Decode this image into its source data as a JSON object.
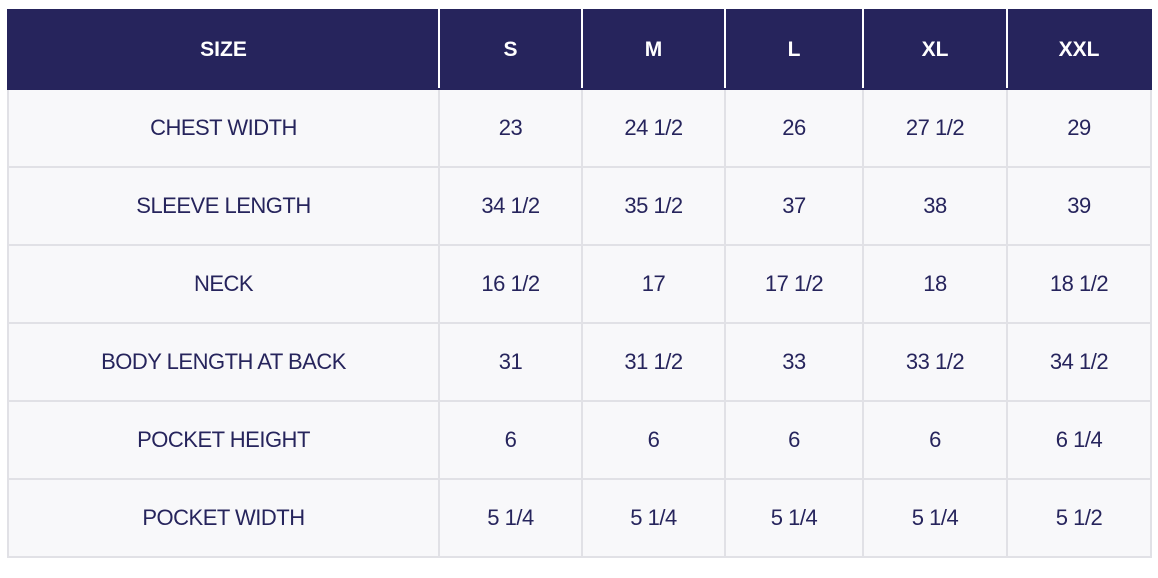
{
  "table": {
    "headers": [
      "SIZE",
      "S",
      "M",
      "L",
      "XL",
      "XXL"
    ],
    "rows": [
      [
        "CHEST WIDTH",
        "23",
        "24 1/2",
        "26",
        "27 1/2",
        "29"
      ],
      [
        "SLEEVE LENGTH",
        "34 1/2",
        "35 1/2",
        "37",
        "38",
        "39"
      ],
      [
        "NECK",
        "16 1/2",
        "17",
        "17 1/2",
        "18",
        "18 1/2"
      ],
      [
        "BODY LENGTH AT BACK",
        "31",
        "31 1/2",
        "33",
        "33 1/2",
        "34 1/2"
      ],
      [
        "POCKET HEIGHT",
        "6",
        "6",
        "6",
        "6",
        "6 1/4"
      ],
      [
        "POCKET WIDTH",
        "5 1/4",
        "5 1/4",
        "5 1/4",
        "5 1/4",
        "5 1/2"
      ]
    ]
  },
  "colors": {
    "header_bg": "#26245c",
    "header_text": "#ffffff",
    "cell_bg": "#f8f8fa",
    "cell_text": "#26245c",
    "border": "#e1e1e6"
  }
}
